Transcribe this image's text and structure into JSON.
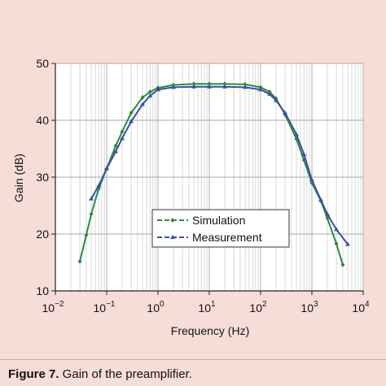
{
  "caption": {
    "label": "Figure 7.",
    "text": " Gain of the preamplifier."
  },
  "chart_data": {
    "type": "line",
    "title": "",
    "xlabel": "Frequency (Hz)",
    "ylabel": "Gain (dB)",
    "xscale": "log",
    "xlim": [
      0.01,
      10000
    ],
    "ylim": [
      10,
      50
    ],
    "xticks": [
      0.01,
      0.1,
      1,
      10,
      100,
      1000,
      10000
    ],
    "xtick_labels": [
      {
        "base": "10",
        "exp": "−2"
      },
      {
        "base": "10",
        "exp": "−1"
      },
      {
        "base": "10",
        "exp": "0"
      },
      {
        "base": "10",
        "exp": "1"
      },
      {
        "base": "10",
        "exp": "2"
      },
      {
        "base": "10",
        "exp": "3"
      },
      {
        "base": "10",
        "exp": "4"
      }
    ],
    "yticks": [
      10,
      20,
      30,
      40,
      50
    ],
    "ytick_labels": [
      "10",
      "20",
      "30",
      "40",
      "50"
    ],
    "grid": true,
    "minor_grid": true,
    "legend_position": "lower-center",
    "series": [
      {
        "name": "Simulation",
        "color": "#2e8b3a",
        "marker": "diamond",
        "x": [
          0.03,
          0.04,
          0.05,
          0.07,
          0.1,
          0.15,
          0.2,
          0.3,
          0.5,
          0.7,
          1,
          2,
          5,
          10,
          20,
          50,
          100,
          150,
          200,
          300,
          500,
          700,
          1000,
          1500,
          2000,
          3000,
          4000
        ],
        "y": [
          15.2,
          19.8,
          23.5,
          28.0,
          31.5,
          35.5,
          38.0,
          41.3,
          44.0,
          45.0,
          45.7,
          46.2,
          46.4,
          46.4,
          46.4,
          46.3,
          45.8,
          45.0,
          43.8,
          41.0,
          36.7,
          33.0,
          29.0,
          25.8,
          22.8,
          18.3,
          14.6
        ]
      },
      {
        "name": "Measurement",
        "color": "#3b4fa8",
        "marker": "triangle",
        "x": [
          0.05,
          0.07,
          0.1,
          0.15,
          0.2,
          0.3,
          0.5,
          0.7,
          1,
          2,
          5,
          10,
          20,
          50,
          100,
          150,
          200,
          300,
          500,
          700,
          1000,
          1500,
          2000,
          3000,
          5000
        ],
        "y": [
          26.2,
          28.5,
          31.5,
          34.5,
          36.8,
          39.8,
          42.8,
          44.3,
          45.4,
          45.8,
          45.9,
          45.9,
          45.9,
          45.8,
          45.4,
          44.6,
          43.5,
          41.3,
          37.5,
          34.0,
          29.5,
          26.0,
          23.5,
          20.8,
          18.2
        ]
      }
    ]
  }
}
